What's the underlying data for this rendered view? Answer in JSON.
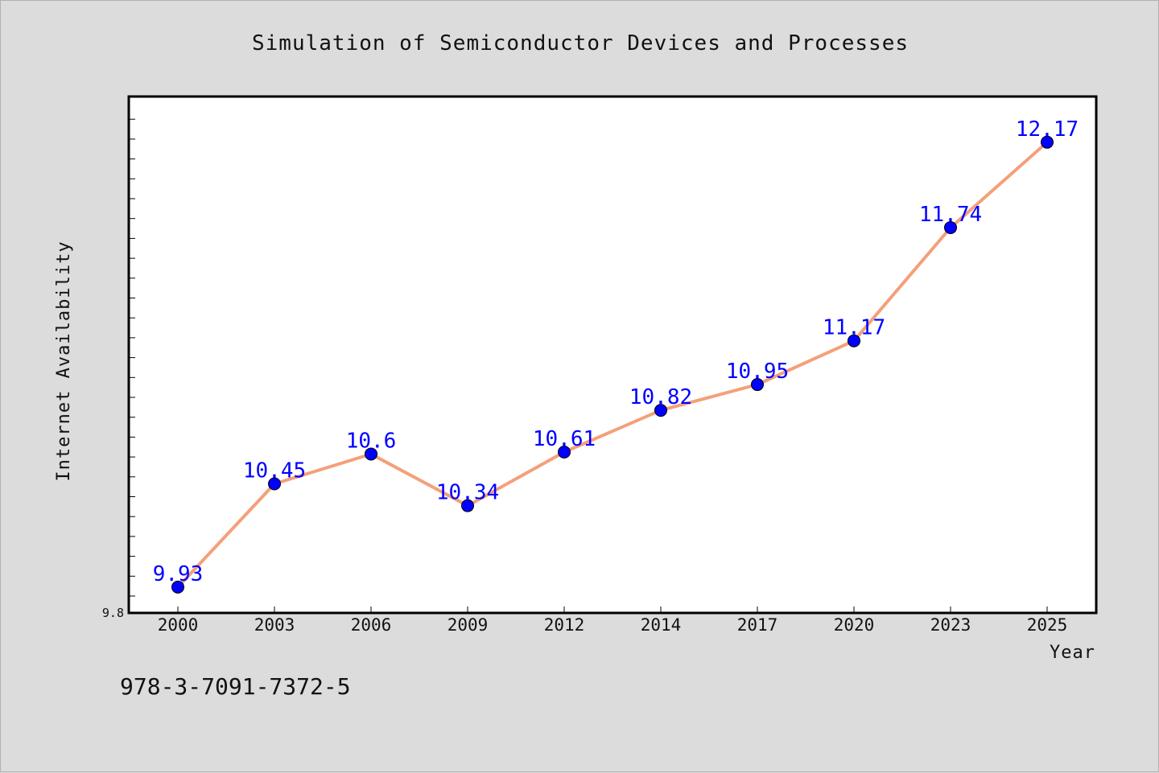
{
  "chart_data": {
    "type": "line",
    "title": "Simulation of Semiconductor Devices and Processes",
    "xlabel": "Year",
    "ylabel": "Internet Availability",
    "categories": [
      "2000",
      "2003",
      "2006",
      "2009",
      "2012",
      "2014",
      "2017",
      "2020",
      "2023",
      "2025"
    ],
    "series": [
      {
        "values": [
          9.93,
          10.45,
          10.6,
          10.34,
          10.61,
          10.82,
          10.95,
          11.17,
          11.74,
          12.17
        ],
        "data_labels": [
          "9.93",
          "10.45",
          "10.6",
          "10.34",
          "10.61",
          "10.82",
          "10.95",
          "11.17",
          "11.74",
          "12.17"
        ],
        "line_color": "#f4a07a",
        "marker_color": "#0000ff"
      }
    ],
    "ylim": [
      9.8,
      12.4
    ],
    "ytick_labels": [
      "9.8"
    ],
    "grid": false,
    "legend": "none"
  },
  "footer": {
    "isbn": "978-3-7091-7372-5"
  },
  "colors": {
    "background": "#dcdcdc",
    "plot_background": "#ffffff",
    "line": "#f4a07a",
    "marker": "#0000ff",
    "data_label": "#0000ff"
  }
}
